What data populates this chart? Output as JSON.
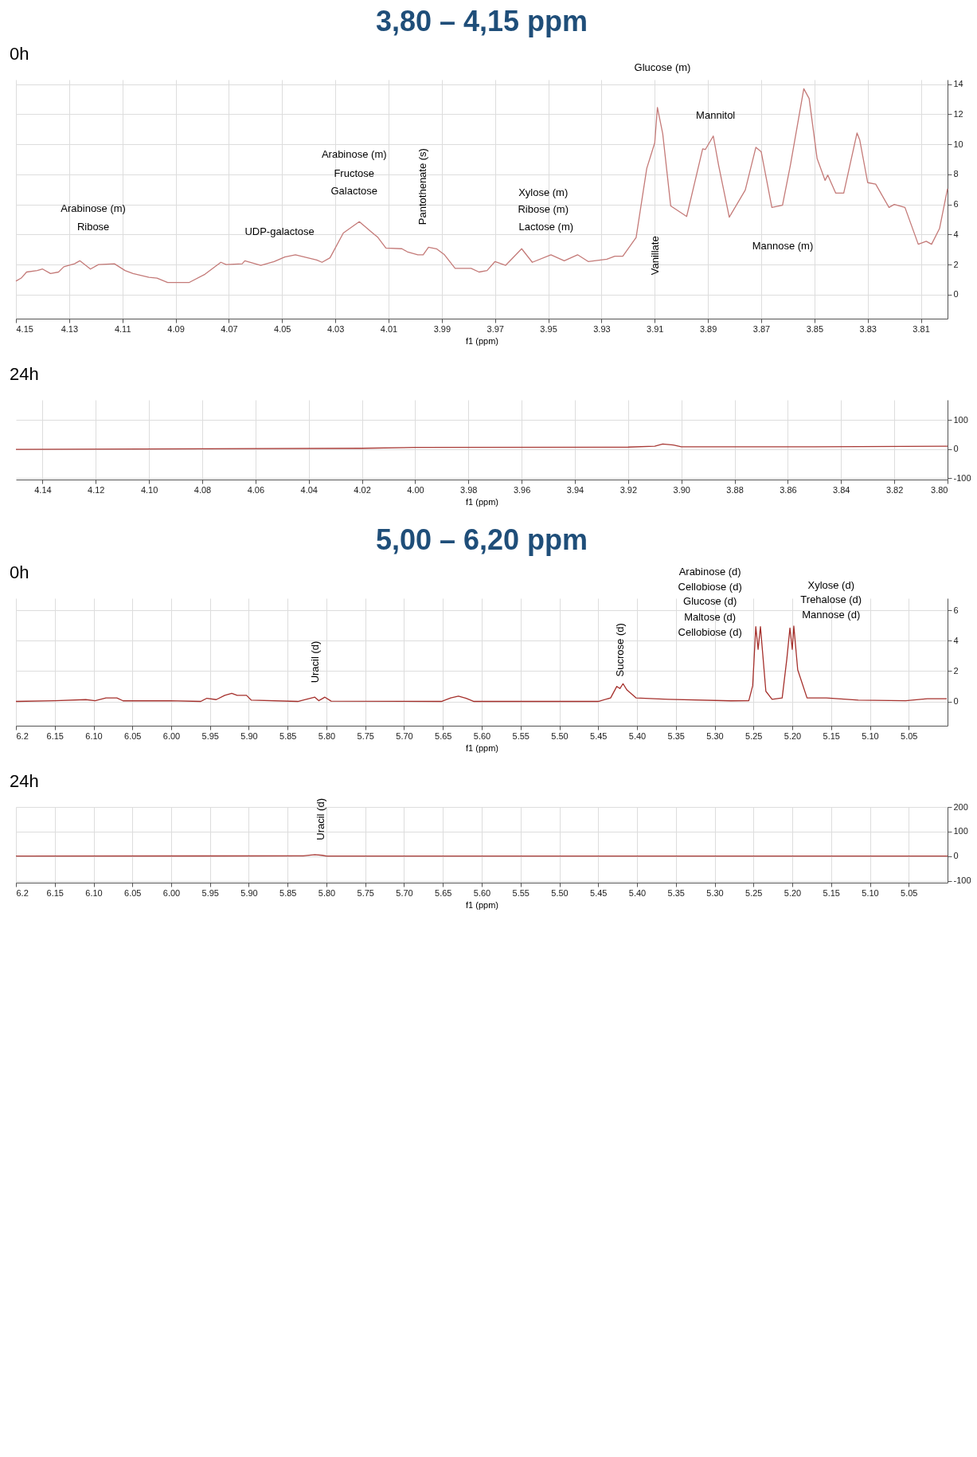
{
  "chart_data": [
    {
      "type": "line",
      "title": "3,80 – 4,15 ppm",
      "subtitle": "0h",
      "xlabel": "f1 (ppm)",
      "xlim": [
        4.15,
        3.8
      ],
      "xticks": [
        4.15,
        4.13,
        4.11,
        4.09,
        4.07,
        4.05,
        4.03,
        4.01,
        3.99,
        3.97,
        3.95,
        3.93,
        3.91,
        3.89,
        3.87,
        3.85,
        3.83,
        3.81
      ],
      "ylim": [
        -1.6,
        14.3
      ],
      "yticks": [
        0,
        2,
        4,
        6,
        8,
        10,
        12,
        14
      ],
      "grid": true,
      "x": [
        4.15,
        4.148,
        4.146,
        4.142,
        4.14,
        4.137,
        4.134,
        4.132,
        4.128,
        4.126,
        4.122,
        4.119,
        4.113,
        4.109,
        4.106,
        4.1,
        4.097,
        4.093,
        4.085,
        4.079,
        4.073,
        4.071,
        4.065,
        4.064,
        4.058,
        4.053,
        4.049,
        4.045,
        4.037,
        4.035,
        4.032,
        4.027,
        4.021,
        4.016,
        4.014,
        4.011,
        4.005,
        4.003,
        3.999,
        3.997,
        3.995,
        3.992,
        3.989,
        3.985,
        3.979,
        3.976,
        3.973,
        3.97,
        3.966,
        3.96,
        3.956,
        3.949,
        3.944,
        3.939,
        3.935,
        3.928,
        3.925,
        3.922,
        3.917,
        3.913,
        3.91,
        3.909,
        3.907,
        3.904,
        3.898,
        3.892,
        3.891,
        3.888,
        3.886,
        3.882,
        3.876,
        3.872,
        3.87,
        3.866,
        3.862,
        3.859,
        3.854,
        3.852,
        3.849,
        3.846,
        3.845,
        3.842,
        3.839,
        3.834,
        3.833,
        3.83,
        3.827,
        3.822,
        3.82,
        3.816,
        3.811,
        3.808,
        3.806,
        3.803,
        3.8
      ],
      "series": [
        {
          "color": "#c47a78",
          "values": [
            0.9,
            1.1,
            1.5,
            1.6,
            1.7,
            1.4,
            1.5,
            1.85,
            2.05,
            2.25,
            1.7,
            2.0,
            2.05,
            1.6,
            1.4,
            1.15,
            1.1,
            0.8,
            0.8,
            1.35,
            2.15,
            2.0,
            2.05,
            2.25,
            1.95,
            2.2,
            2.5,
            2.65,
            2.3,
            2.15,
            2.45,
            4.1,
            4.85,
            4.1,
            3.8,
            3.1,
            3.05,
            2.85,
            2.65,
            2.65,
            3.15,
            3.05,
            2.65,
            1.75,
            1.75,
            1.5,
            1.6,
            2.2,
            1.95,
            3.05,
            2.15,
            2.65,
            2.25,
            2.65,
            2.2,
            2.35,
            2.55,
            2.55,
            3.8,
            8.4,
            10.1,
            12.45,
            10.7,
            5.9,
            5.2,
            9.7,
            9.65,
            10.55,
            8.6,
            5.15,
            6.95,
            9.8,
            9.5,
            5.8,
            5.95,
            8.65,
            13.7,
            13.05,
            9.05,
            7.6,
            7.95,
            6.75,
            6.75,
            10.75,
            10.3,
            7.45,
            7.35,
            5.8,
            6.0,
            5.8,
            3.35,
            3.55,
            3.35,
            4.4,
            7.05
          ]
        }
      ],
      "annotations": [
        "Arabinose (m)",
        "Ribose",
        "UDP-galactose",
        "Arabinose (m)",
        "Fructose",
        "Galactose",
        "Pantothenate (s)",
        "Glucose (m)",
        "Mannitol",
        "Xylose (m)",
        "Ribose (m)",
        "Lactose (m)",
        "Vanillate",
        "Mannose (m)"
      ]
    },
    {
      "type": "line",
      "subtitle": "24h",
      "xlabel": "f1 (ppm)",
      "xlim": [
        4.15,
        3.8
      ],
      "xticks": [
        4.14,
        4.12,
        {
          "value": 4.1,
          "label": "4.10"
        },
        4.08,
        4.06,
        4.04,
        4.02,
        {
          "value": 4.0,
          "label": "4.00"
        },
        3.98,
        3.96,
        3.94,
        3.92,
        {
          "value": 3.9,
          "label": "3.90"
        },
        3.88,
        3.86,
        3.84,
        3.82,
        {
          "value": 3.8,
          "label": "3.80"
        }
      ],
      "ylim": [
        -105,
        170
      ],
      "yticks": [
        -100,
        0,
        100
      ],
      "grid": true,
      "x": [
        4.15,
        4.02,
        4.0,
        3.92,
        3.91,
        3.907,
        3.903,
        3.9,
        3.85,
        3.8
      ],
      "series": [
        {
          "color": "#a83a36",
          "values": [
            -1,
            3,
            6,
            7,
            10,
            18,
            14,
            8,
            8,
            10
          ]
        }
      ]
    },
    {
      "type": "line",
      "title": "5,00 – 6,20 ppm",
      "subtitle": "0h",
      "xlabel": "f1 (ppm)",
      "xlim": [
        6.2,
        5.0
      ],
      "xticks": [
        6.2,
        6.15,
        {
          "value": 6.1,
          "label": "6.10"
        },
        6.05,
        {
          "value": 6.0,
          "label": "6.00"
        },
        5.95,
        {
          "value": 5.9,
          "label": "5.90"
        },
        5.85,
        {
          "value": 5.8,
          "label": "5.80"
        },
        5.75,
        {
          "value": 5.7,
          "label": "5.70"
        },
        5.65,
        {
          "value": 5.6,
          "label": "5.60"
        },
        5.55,
        {
          "value": 5.5,
          "label": "5.50"
        },
        5.45,
        {
          "value": 5.4,
          "label": "5.40"
        },
        5.35,
        {
          "value": 5.3,
          "label": "5.30"
        },
        5.25,
        {
          "value": 5.2,
          "label": "5.20"
        },
        5.15,
        {
          "value": 5.1,
          "label": "5.10"
        },
        5.05
      ],
      "ylim": [
        -1.6,
        6.8
      ],
      "yticks": [
        0,
        2,
        4,
        6
      ],
      "grid": true,
      "x": [
        6.2,
        6.15,
        6.11,
        6.098,
        6.084,
        6.07,
        6.062,
        6.002,
        5.962,
        5.954,
        5.942,
        5.931,
        5.922,
        5.915,
        5.903,
        5.897,
        5.837,
        5.815,
        5.81,
        5.802,
        5.794,
        5.652,
        5.64,
        5.63,
        5.62,
        5.61,
        5.45,
        5.434,
        5.426,
        5.422,
        5.418,
        5.413,
        5.401,
        5.36,
        5.279,
        5.256,
        5.251,
        5.247,
        5.244,
        5.241,
        5.234,
        5.226,
        5.213,
        5.207,
        5.203,
        5.2,
        5.198,
        5.193,
        5.181,
        5.156,
        5.115,
        5.054,
        5.026,
        5.001
      ],
      "series": [
        {
          "color": "#a5302c",
          "values": [
            0,
            0.05,
            0.12,
            0.05,
            0.23,
            0.23,
            0.04,
            0.05,
            0,
            0.21,
            0.12,
            0.4,
            0.53,
            0.4,
            0.4,
            0.09,
            0,
            0.28,
            0.05,
            0.28,
            0.02,
            0,
            0.23,
            0.35,
            0.21,
            0,
            0,
            0.23,
            0.99,
            0.85,
            1.17,
            0.76,
            0.23,
            0.14,
            0.04,
            0.05,
            1.03,
            4.93,
            3.43,
            4.93,
            0.67,
            0.14,
            0.23,
            2.8,
            4.84,
            3.43,
            4.97,
            2.09,
            0.23,
            0.23,
            0.09,
            0.05,
            0.18,
            0.18
          ]
        }
      ],
      "annotations": [
        "Uracil (d)",
        "Sucrose (d)",
        "Arabinose (d)",
        "Cellobiose (d)",
        "Glucose (d)",
        "Maltose (d)",
        "Cellobiose (d)",
        "Xylose (d)",
        "Trehalose (d)",
        "Mannose (d)"
      ]
    },
    {
      "type": "line",
      "subtitle": "24h",
      "xlabel": "f1 (ppm)",
      "xlim": [
        6.2,
        5.0
      ],
      "xticks": [
        6.2,
        6.15,
        {
          "value": 6.1,
          "label": "6.10"
        },
        6.05,
        {
          "value": 6.0,
          "label": "6.00"
        },
        5.95,
        {
          "value": 5.9,
          "label": "5.90"
        },
        5.85,
        {
          "value": 5.8,
          "label": "5.80"
        },
        5.75,
        {
          "value": 5.7,
          "label": "5.70"
        },
        5.65,
        {
          "value": 5.6,
          "label": "5.60"
        },
        5.55,
        {
          "value": 5.5,
          "label": "5.50"
        },
        5.45,
        {
          "value": 5.4,
          "label": "5.40"
        },
        5.35,
        {
          "value": 5.3,
          "label": "5.30"
        },
        5.25,
        {
          "value": 5.2,
          "label": "5.20"
        },
        5.15,
        {
          "value": 5.1,
          "label": "5.10"
        },
        5.05
      ],
      "ylim": [
        -108,
        200
      ],
      "yticks": [
        -100,
        0,
        100,
        200
      ],
      "grid": true,
      "x": [
        6.2,
        5.83,
        5.815,
        5.805,
        5.8,
        5.0
      ],
      "series": [
        {
          "color": "#a83a36",
          "values": [
            0,
            1,
            6,
            3,
            0,
            0
          ]
        }
      ],
      "annotations": [
        "Uracil (d)"
      ]
    }
  ]
}
